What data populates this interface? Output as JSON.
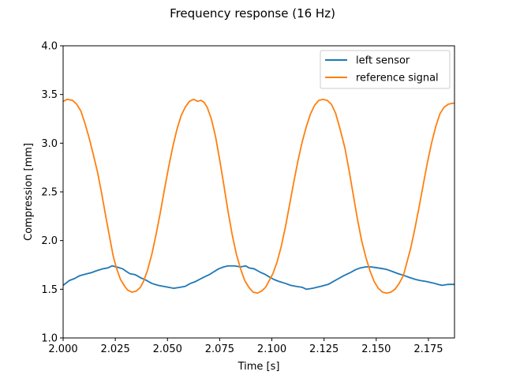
{
  "chart_data": {
    "type": "line",
    "title": "Frequency response (16 Hz)",
    "xlabel": "Time [s]",
    "ylabel": "Compression [mm]",
    "xlim": [
      2.0,
      2.1875
    ],
    "ylim": [
      1.0,
      4.0
    ],
    "x_ticks": [
      "2.000",
      "2.025",
      "2.050",
      "2.075",
      "2.100",
      "2.125",
      "2.150",
      "2.175"
    ],
    "y_ticks": [
      "1.0",
      "1.5",
      "2.0",
      "2.5",
      "3.0",
      "3.5",
      "4.0"
    ],
    "grid": false,
    "legend_position": "top-right",
    "series": [
      {
        "name": "left sensor",
        "color": "#1f77b4",
        "x": [
          2.0,
          2.003,
          2.0055,
          2.008,
          2.0115,
          2.0135,
          2.016,
          2.019,
          2.0215,
          2.0235,
          2.0255,
          2.0285,
          2.0305,
          2.032,
          2.0345,
          2.037,
          2.04,
          2.0425,
          2.0455,
          2.048,
          2.0505,
          2.053,
          2.056,
          2.0585,
          2.061,
          2.0635,
          2.067,
          2.07,
          2.0715,
          2.0745,
          2.077,
          2.079,
          2.082,
          2.085,
          2.0875,
          2.089,
          2.0915,
          2.094,
          2.097,
          2.0985,
          2.101,
          2.1035,
          2.1065,
          2.109,
          2.1115,
          2.1145,
          2.1165,
          2.1195,
          2.1215,
          2.1235,
          2.127,
          2.1295,
          2.132,
          2.1345,
          2.1375,
          2.14,
          2.1425,
          2.145,
          2.1475,
          2.1505,
          2.1535,
          2.1555,
          2.158,
          2.1605,
          2.1635,
          2.166,
          2.169,
          2.171,
          2.174,
          2.176,
          2.178,
          2.1795,
          2.1815,
          2.1845,
          2.1875
        ],
        "values": [
          1.54,
          1.59,
          1.61,
          1.64,
          1.66,
          1.67,
          1.69,
          1.71,
          1.72,
          1.74,
          1.73,
          1.71,
          1.68,
          1.66,
          1.65,
          1.62,
          1.59,
          1.56,
          1.54,
          1.53,
          1.52,
          1.51,
          1.52,
          1.53,
          1.56,
          1.58,
          1.62,
          1.65,
          1.67,
          1.71,
          1.73,
          1.74,
          1.74,
          1.73,
          1.74,
          1.72,
          1.71,
          1.68,
          1.65,
          1.63,
          1.6,
          1.58,
          1.56,
          1.54,
          1.53,
          1.52,
          1.5,
          1.51,
          1.52,
          1.53,
          1.55,
          1.58,
          1.61,
          1.64,
          1.67,
          1.7,
          1.72,
          1.73,
          1.73,
          1.72,
          1.71,
          1.7,
          1.68,
          1.66,
          1.64,
          1.62,
          1.6,
          1.59,
          1.58,
          1.57,
          1.56,
          1.55,
          1.54,
          1.55,
          1.55
        ]
      },
      {
        "name": "reference signal",
        "color": "#ff7f0e",
        "x": [
          2.0,
          2.002,
          2.0045,
          2.0065,
          2.0085,
          2.0105,
          2.0125,
          2.0145,
          2.0165,
          2.0185,
          2.0205,
          2.0225,
          2.024,
          2.0255,
          2.0275,
          2.0295,
          2.031,
          2.033,
          2.035,
          2.037,
          2.0385,
          2.0405,
          2.0425,
          2.0445,
          2.0465,
          2.0485,
          2.0505,
          2.0525,
          2.0545,
          2.0565,
          2.0585,
          2.0605,
          2.0625,
          2.0645,
          2.066,
          2.0675,
          2.069,
          2.071,
          2.073,
          2.075,
          2.077,
          2.079,
          2.081,
          2.083,
          2.085,
          2.087,
          2.089,
          2.091,
          2.093,
          2.095,
          2.097,
          2.0985,
          2.1005,
          2.1025,
          2.1045,
          2.1065,
          2.1085,
          2.1105,
          2.1125,
          2.1145,
          2.1165,
          2.1185,
          2.1205,
          2.1225,
          2.1245,
          2.1265,
          2.1285,
          2.1305,
          2.1325,
          2.135,
          2.137,
          2.139,
          2.141,
          2.143,
          2.145,
          2.147,
          2.149,
          2.151,
          2.153,
          2.155,
          2.157,
          2.159,
          2.161,
          2.163,
          2.1645,
          2.1665,
          2.1685,
          2.1705,
          2.1725,
          2.1745,
          2.1765,
          2.1785,
          2.1805,
          2.1825,
          2.1845,
          2.1865,
          2.1875
        ],
        "values": [
          3.43,
          3.45,
          3.44,
          3.4,
          3.33,
          3.2,
          3.05,
          2.88,
          2.7,
          2.48,
          2.24,
          2.01,
          1.84,
          1.72,
          1.6,
          1.53,
          1.49,
          1.47,
          1.48,
          1.52,
          1.58,
          1.7,
          1.86,
          2.06,
          2.28,
          2.52,
          2.75,
          2.96,
          3.14,
          3.28,
          3.37,
          3.43,
          3.45,
          3.43,
          3.44,
          3.42,
          3.37,
          3.25,
          3.07,
          2.83,
          2.57,
          2.3,
          2.06,
          1.86,
          1.71,
          1.59,
          1.52,
          1.47,
          1.46,
          1.48,
          1.52,
          1.58,
          1.66,
          1.78,
          1.94,
          2.14,
          2.37,
          2.6,
          2.82,
          3.01,
          3.17,
          3.3,
          3.39,
          3.44,
          3.45,
          3.44,
          3.4,
          3.31,
          3.16,
          2.95,
          2.72,
          2.47,
          2.22,
          2.0,
          1.83,
          1.69,
          1.58,
          1.51,
          1.47,
          1.46,
          1.47,
          1.5,
          1.56,
          1.64,
          1.76,
          1.92,
          2.12,
          2.34,
          2.57,
          2.8,
          3.0,
          3.17,
          3.3,
          3.37,
          3.4,
          3.41,
          3.41
        ]
      }
    ]
  }
}
